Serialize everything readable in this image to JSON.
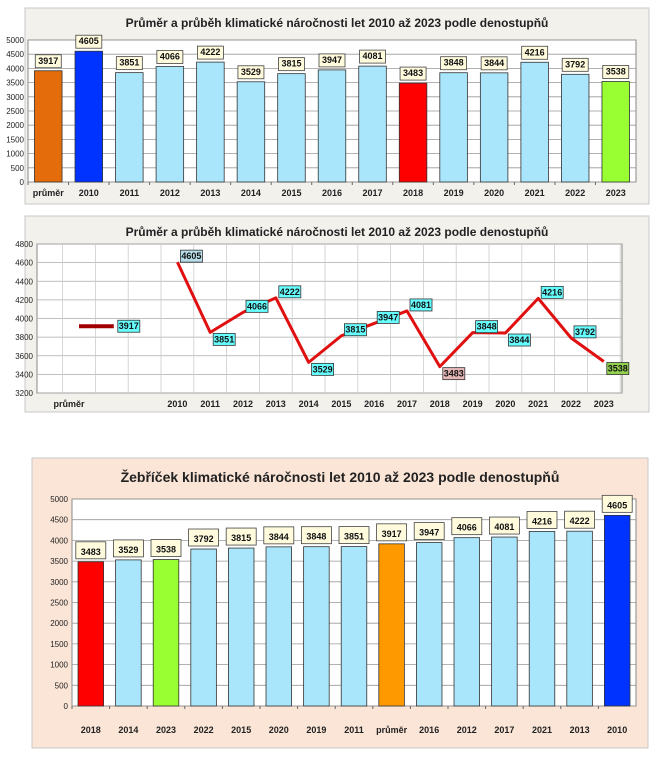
{
  "colors": {
    "bar_default": "#a9e6fb",
    "bar_average_top": "#e46c0a",
    "bar_average_bottom": "#ff9900",
    "bar_max": "#0033ff",
    "bar_min": "#ff0000",
    "bar_last": "#99ff33",
    "line": "#e01010",
    "line_average": "#a00000",
    "label_box": "#fffbdc",
    "line_label_box": "#66ffff",
    "panel_bg": "#f2f1ec",
    "panel3_bg": "#fbe5d6"
  },
  "chart_data": [
    {
      "type": "bar",
      "title": "Průměr a průběh klimatické náročnosti let 2010 až 2023 podle denostupňů",
      "categories": [
        "průměr",
        "2010",
        "2011",
        "2012",
        "2013",
        "2014",
        "2015",
        "2016",
        "2017",
        "2018",
        "2019",
        "2020",
        "2021",
        "2022",
        "2023"
      ],
      "values": [
        3917,
        4605,
        3851,
        4066,
        4222,
        3529,
        3815,
        3947,
        4081,
        3483,
        3848,
        3844,
        4216,
        3792,
        3538
      ],
      "ylim": [
        0,
        5000
      ],
      "yticks": [
        0,
        500,
        1000,
        1500,
        2000,
        2500,
        3000,
        3500,
        4000,
        4500,
        5000
      ],
      "grid": true,
      "data_labels": true
    },
    {
      "type": "line",
      "title": "Průměr a průběh klimatické náročnosti let 2010 až 2023 podle denostupňů",
      "categories": [
        "průměr",
        "",
        "",
        "2010",
        "2011",
        "2012",
        "2013",
        "2014",
        "2015",
        "2016",
        "2017",
        "2018",
        "2019",
        "2020",
        "2021",
        "2022",
        "2023"
      ],
      "series": [
        {
          "values": [
            3917,
            3917,
            null,
            null,
            null,
            null,
            null,
            null,
            null,
            null,
            null,
            null,
            null,
            null,
            null,
            null,
            null
          ]
        },
        {
          "values": [
            null,
            null,
            null,
            4605,
            3851,
            4066,
            4222,
            3529,
            3815,
            3947,
            4081,
            3483,
            3848,
            3844,
            4216,
            3792,
            3538
          ]
        }
      ],
      "ylim": [
        3200,
        4800
      ],
      "yticks": [
        3200,
        3400,
        3600,
        3800,
        4000,
        4200,
        4400,
        4600,
        4800
      ],
      "grid": true,
      "data_labels": true
    },
    {
      "type": "bar",
      "title": "Žebříček klimatické náročnosti  let 2010 až 2023 podle denostupňů",
      "categories": [
        "2018",
        "2014",
        "2023",
        "2022",
        "2015",
        "2020",
        "2019",
        "2011",
        "průměr",
        "2016",
        "2012",
        "2017",
        "2021",
        "2013",
        "2010"
      ],
      "values": [
        3483,
        3529,
        3538,
        3792,
        3815,
        3844,
        3848,
        3851,
        3917,
        3947,
        4066,
        4081,
        4216,
        4222,
        4605
      ],
      "ylim": [
        0,
        5000
      ],
      "yticks": [
        0,
        500,
        1000,
        1500,
        2000,
        2500,
        3000,
        3500,
        4000,
        4500,
        5000
      ],
      "grid": true,
      "data_labels": true
    }
  ]
}
